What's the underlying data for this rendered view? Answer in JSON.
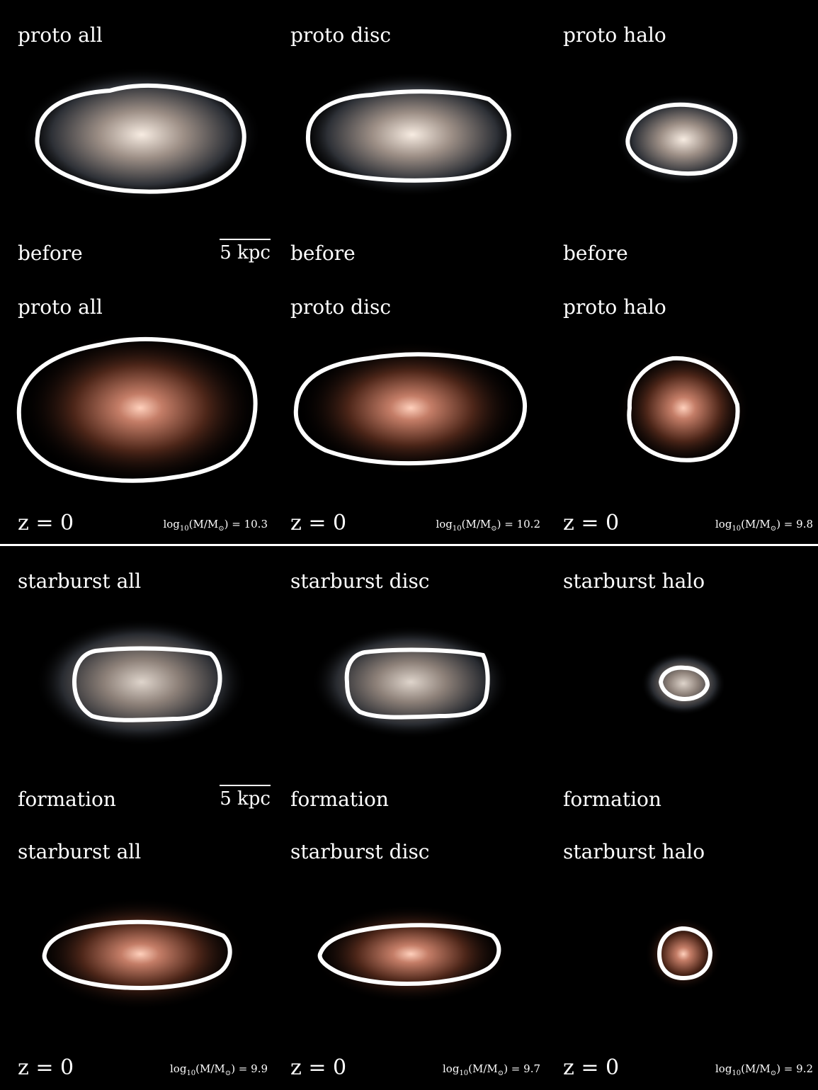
{
  "groups": [
    {
      "rows": [
        {
          "panels": [
            {
              "title": "proto all",
              "bottom": "before",
              "scale": "5 kpc"
            },
            {
              "title": "proto disc",
              "bottom": "before"
            },
            {
              "title": "proto halo",
              "bottom": "before"
            }
          ]
        },
        {
          "panels": [
            {
              "title": "proto all",
              "z": "z = 0",
              "mass_prefix": "log",
              "mass_sub": "10",
              "mass_mid": "(M/M",
              "mass_sun": "⊙",
              "mass_value": ") = 10.3"
            },
            {
              "title": "proto disc",
              "z": "z = 0",
              "mass_prefix": "log",
              "mass_sub": "10",
              "mass_mid": "(M/M",
              "mass_sun": "⊙",
              "mass_value": ") = 10.2"
            },
            {
              "title": "proto halo",
              "z": "z = 0",
              "mass_prefix": "log",
              "mass_sub": "10",
              "mass_mid": "(M/M",
              "mass_sun": "⊙",
              "mass_value": ") = 9.8"
            }
          ]
        }
      ]
    },
    {
      "rows": [
        {
          "panels": [
            {
              "title": "starburst all",
              "bottom": "formation",
              "scale": "5 kpc"
            },
            {
              "title": "starburst disc",
              "bottom": "formation"
            },
            {
              "title": "starburst halo",
              "bottom": "formation"
            }
          ]
        },
        {
          "panels": [
            {
              "title": "starburst all",
              "z": "z = 0",
              "mass_prefix": "log",
              "mass_sub": "10",
              "mass_mid": "(M/M",
              "mass_sun": "⊙",
              "mass_value": ") = 9.9"
            },
            {
              "title": "starburst disc",
              "z": "z = 0",
              "mass_prefix": "log",
              "mass_sub": "10",
              "mass_mid": "(M/M",
              "mass_sun": "⊙",
              "mass_value": ") = 9.7"
            },
            {
              "title": "starburst halo",
              "z": "z = 0",
              "mass_prefix": "log",
              "mass_sub": "10",
              "mass_mid": "(M/M",
              "mass_sun": "⊙",
              "mass_value": ") = 9.2"
            }
          ]
        }
      ]
    }
  ],
  "colors": {
    "background": "#000000",
    "contour": "#ffffff",
    "early_glow": "#f3e6da",
    "early_halo": "#6d7e8c",
    "late_glow": "#ffc9b4",
    "late_halo": "#4a2418"
  }
}
